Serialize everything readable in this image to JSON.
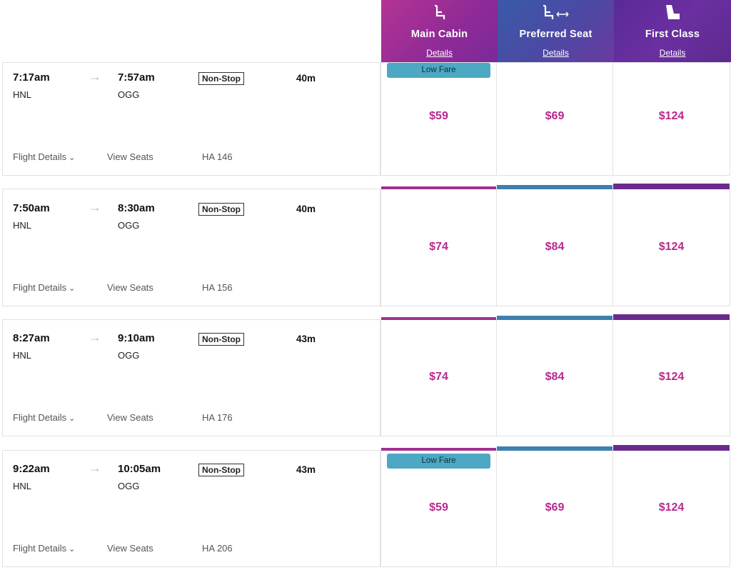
{
  "cabins": [
    {
      "id": "main",
      "title": "Main Cabin",
      "details": "Details",
      "icon": "seat-icon"
    },
    {
      "id": "pref",
      "title": "Preferred Seat",
      "details": "Details",
      "icon": "seat-extra-legroom-icon"
    },
    {
      "id": "first",
      "title": "First Class",
      "details": "Details",
      "icon": "recliner-seat-icon"
    }
  ],
  "colors": {
    "price": "#b8288c",
    "low_fare": "#4ca8c3",
    "main": "#a0318f",
    "pref": "#3f7fae",
    "first": "#6b2b8e"
  },
  "flights": [
    {
      "depart": "7:17am",
      "arrive": "7:57am",
      "from": "HNL",
      "to": "OGG",
      "stops": "Non-Stop",
      "duration": "40m",
      "details_label": "Flight Details",
      "seats_label": "View Seats",
      "flight_no": "HA 146",
      "low_fare": "Low Fare",
      "prices": [
        "$59",
        "$69",
        "$124"
      ]
    },
    {
      "depart": "7:50am",
      "arrive": "8:30am",
      "from": "HNL",
      "to": "OGG",
      "stops": "Non-Stop",
      "duration": "40m",
      "details_label": "Flight Details",
      "seats_label": "View Seats",
      "flight_no": "HA 156",
      "prices": [
        "$74",
        "$84",
        "$124"
      ]
    },
    {
      "depart": "8:27am",
      "arrive": "9:10am",
      "from": "HNL",
      "to": "OGG",
      "stops": "Non-Stop",
      "duration": "43m",
      "details_label": "Flight Details",
      "seats_label": "View Seats",
      "flight_no": "HA 176",
      "prices": [
        "$74",
        "$84",
        "$124"
      ]
    },
    {
      "depart": "9:22am",
      "arrive": "10:05am",
      "from": "HNL",
      "to": "OGG",
      "stops": "Non-Stop",
      "duration": "43m",
      "details_label": "Flight Details",
      "seats_label": "View Seats",
      "flight_no": "HA 206",
      "low_fare": "Low Fare",
      "prices": [
        "$59",
        "$69",
        "$124"
      ]
    }
  ]
}
